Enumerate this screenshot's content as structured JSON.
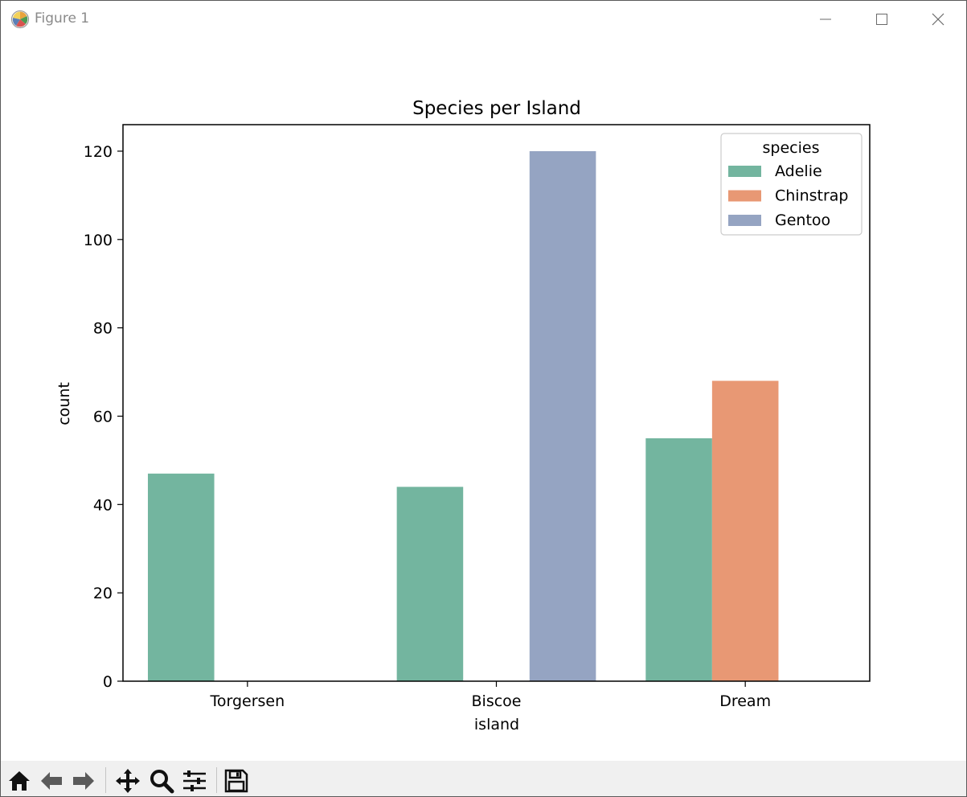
{
  "window": {
    "title": "Figure 1"
  },
  "toolbar": {
    "icons": [
      "home-icon",
      "back-icon",
      "forward-icon",
      "pan-icon",
      "zoom-icon",
      "configure-subplots-icon",
      "save-icon"
    ]
  },
  "chart_data": {
    "type": "bar",
    "title": "Species per Island",
    "xlabel": "island",
    "ylabel": "count",
    "categories": [
      "Torgersen",
      "Biscoe",
      "Dream"
    ],
    "ylim": [
      0,
      126
    ],
    "yticks": [
      0,
      20,
      40,
      60,
      80,
      100,
      120
    ],
    "grid": false,
    "legend": {
      "title": "species",
      "placement": "top-right"
    },
    "series": [
      {
        "name": "Adelie",
        "color": "#73b59f",
        "values": [
          47,
          44,
          55
        ]
      },
      {
        "name": "Chinstrap",
        "color": "#e89874",
        "values": [
          0,
          0,
          68
        ]
      },
      {
        "name": "Gentoo",
        "color": "#95a4c2",
        "values": [
          0,
          120,
          0
        ]
      }
    ]
  }
}
